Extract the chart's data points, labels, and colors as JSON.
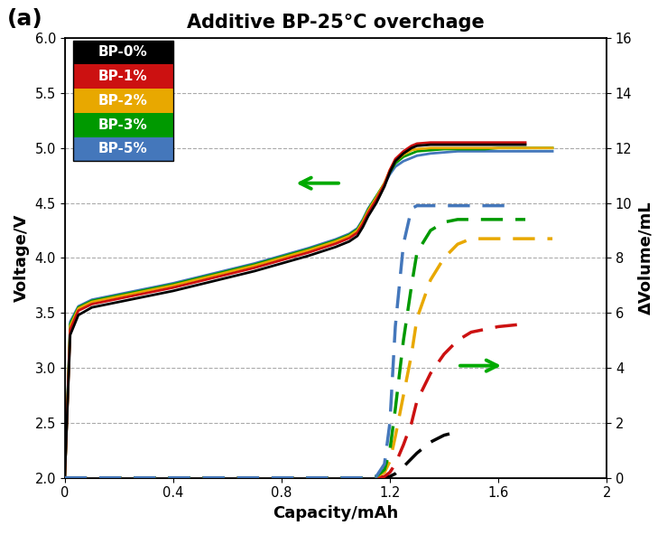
{
  "title": "Additive BP-25°C overchage",
  "panel_label": "(a)",
  "xlabel": "Capacity/mAh",
  "ylabel_left": "Voltage/V",
  "ylabel_right": "ΔVolume/mL",
  "xlim": [
    0,
    2
  ],
  "ylim_left": [
    2,
    6
  ],
  "ylim_right": [
    0,
    16
  ],
  "xticks": [
    0,
    0.4,
    0.8,
    1.2,
    1.6,
    2.0
  ],
  "yticks_left": [
    2,
    2.5,
    3,
    3.5,
    4,
    4.5,
    5,
    5.5,
    6
  ],
  "yticks_right": [
    0,
    2,
    4,
    6,
    8,
    10,
    12,
    14,
    16
  ],
  "legend_labels": [
    "BP-0%",
    "BP-1%",
    "BP-2%",
    "BP-3%",
    "BP-5%"
  ],
  "legend_bg_colors": [
    "#000000",
    "#cc1111",
    "#e8a800",
    "#009900",
    "#4477bb"
  ],
  "colors": {
    "BP-0%": "#000000",
    "BP-1%": "#cc1111",
    "BP-2%": "#e8a800",
    "BP-3%": "#009900",
    "BP-5%": "#4477bb"
  },
  "background_color": "#ffffff",
  "title_fontsize": 15,
  "label_fontsize": 12,
  "voltage_curves": {
    "BP-0%": {
      "x": [
        0.0,
        0.02,
        0.05,
        0.1,
        0.2,
        0.3,
        0.4,
        0.5,
        0.6,
        0.7,
        0.8,
        0.9,
        1.0,
        1.05,
        1.08,
        1.1,
        1.12,
        1.15,
        1.18,
        1.2,
        1.22,
        1.25,
        1.28,
        1.3,
        1.35,
        1.4,
        1.45,
        1.5,
        1.55,
        1.6,
        1.65,
        1.7
      ],
      "y": [
        2.0,
        3.3,
        3.48,
        3.55,
        3.6,
        3.65,
        3.7,
        3.76,
        3.82,
        3.88,
        3.95,
        4.02,
        4.1,
        4.15,
        4.2,
        4.28,
        4.38,
        4.5,
        4.65,
        4.78,
        4.88,
        4.95,
        5.0,
        5.02,
        5.03,
        5.03,
        5.03,
        5.03,
        5.03,
        5.03,
        5.03,
        5.03
      ]
    },
    "BP-1%": {
      "x": [
        0.0,
        0.02,
        0.05,
        0.1,
        0.2,
        0.3,
        0.4,
        0.5,
        0.6,
        0.7,
        0.8,
        0.9,
        1.0,
        1.05,
        1.08,
        1.1,
        1.12,
        1.15,
        1.18,
        1.2,
        1.22,
        1.25,
        1.28,
        1.3,
        1.35,
        1.4,
        1.45,
        1.5,
        1.55,
        1.6,
        1.65,
        1.7
      ],
      "y": [
        2.0,
        3.35,
        3.52,
        3.58,
        3.63,
        3.68,
        3.73,
        3.79,
        3.85,
        3.91,
        3.98,
        4.05,
        4.13,
        4.18,
        4.23,
        4.31,
        4.41,
        4.53,
        4.67,
        4.8,
        4.9,
        4.97,
        5.02,
        5.04,
        5.05,
        5.05,
        5.05,
        5.05,
        5.05,
        5.05,
        5.05,
        5.05
      ]
    },
    "BP-2%": {
      "x": [
        0.0,
        0.02,
        0.05,
        0.1,
        0.2,
        0.3,
        0.4,
        0.5,
        0.6,
        0.7,
        0.8,
        0.9,
        1.0,
        1.05,
        1.08,
        1.1,
        1.12,
        1.15,
        1.18,
        1.2,
        1.22,
        1.25,
        1.28,
        1.3,
        1.35,
        1.4,
        1.45,
        1.5,
        1.55,
        1.6,
        1.65,
        1.7,
        1.75,
        1.8
      ],
      "y": [
        2.0,
        3.38,
        3.54,
        3.6,
        3.65,
        3.7,
        3.75,
        3.81,
        3.87,
        3.93,
        4.0,
        4.07,
        4.15,
        4.2,
        4.25,
        4.33,
        4.43,
        4.55,
        4.68,
        4.8,
        4.88,
        4.94,
        4.98,
        4.99,
        5.0,
        5.0,
        5.0,
        5.0,
        5.0,
        5.0,
        5.0,
        5.0,
        5.0,
        5.0
      ]
    },
    "BP-3%": {
      "x": [
        0.0,
        0.02,
        0.05,
        0.1,
        0.2,
        0.3,
        0.4,
        0.5,
        0.6,
        0.7,
        0.8,
        0.9,
        1.0,
        1.05,
        1.08,
        1.1,
        1.12,
        1.15,
        1.18,
        1.2,
        1.22,
        1.25,
        1.28,
        1.3,
        1.35,
        1.4,
        1.45,
        1.5,
        1.55,
        1.6,
        1.65,
        1.7,
        1.75,
        1.8
      ],
      "y": [
        2.0,
        3.4,
        3.55,
        3.61,
        3.66,
        3.71,
        3.76,
        3.82,
        3.88,
        3.94,
        4.01,
        4.08,
        4.16,
        4.21,
        4.26,
        4.34,
        4.44,
        4.56,
        4.68,
        4.78,
        4.86,
        4.92,
        4.95,
        4.97,
        4.98,
        4.99,
        4.99,
        4.99,
        4.99,
        5.0,
        5.0,
        5.0,
        5.0,
        5.0
      ]
    },
    "BP-5%": {
      "x": [
        0.0,
        0.02,
        0.05,
        0.1,
        0.2,
        0.3,
        0.4,
        0.5,
        0.6,
        0.7,
        0.8,
        0.9,
        1.0,
        1.05,
        1.08,
        1.1,
        1.12,
        1.15,
        1.18,
        1.2,
        1.22,
        1.25,
        1.28,
        1.3,
        1.35,
        1.4,
        1.45,
        1.5,
        1.55,
        1.6,
        1.65,
        1.7,
        1.75,
        1.8
      ],
      "y": [
        2.0,
        3.42,
        3.56,
        3.62,
        3.67,
        3.72,
        3.77,
        3.83,
        3.89,
        3.95,
        4.02,
        4.09,
        4.17,
        4.22,
        4.27,
        4.35,
        4.45,
        4.56,
        4.67,
        4.76,
        4.83,
        4.88,
        4.91,
        4.93,
        4.95,
        4.96,
        4.97,
        4.97,
        4.97,
        4.97,
        4.97,
        4.97,
        4.97,
        4.97
      ]
    }
  },
  "volume_curves": {
    "BP-0%": {
      "x": [
        0.0,
        0.5,
        1.0,
        1.1,
        1.15,
        1.18,
        1.2,
        1.22,
        1.25,
        1.28,
        1.3,
        1.35,
        1.4,
        1.42
      ],
      "y": [
        0.0,
        0.0,
        0.0,
        0.0,
        0.0,
        0.0,
        0.05,
        0.15,
        0.4,
        0.7,
        0.9,
        1.3,
        1.55,
        1.6
      ]
    },
    "BP-1%": {
      "x": [
        0.0,
        0.5,
        1.0,
        1.1,
        1.15,
        1.18,
        1.2,
        1.22,
        1.25,
        1.28,
        1.3,
        1.35,
        1.4,
        1.45,
        1.5,
        1.55,
        1.6,
        1.65,
        1.7
      ],
      "y": [
        0.0,
        0.0,
        0.0,
        0.0,
        0.0,
        0.05,
        0.2,
        0.5,
        1.2,
        2.0,
        2.8,
        3.8,
        4.5,
        5.0,
        5.3,
        5.4,
        5.5,
        5.55,
        5.6
      ]
    },
    "BP-2%": {
      "x": [
        0.0,
        0.5,
        1.0,
        1.1,
        1.15,
        1.18,
        1.2,
        1.22,
        1.25,
        1.28,
        1.3,
        1.35,
        1.4,
        1.45,
        1.5,
        1.55,
        1.6,
        1.65,
        1.7,
        1.75,
        1.8
      ],
      "y": [
        0.0,
        0.0,
        0.0,
        0.0,
        0.05,
        0.2,
        0.6,
        1.5,
        3.0,
        4.5,
        5.8,
        7.2,
        8.0,
        8.5,
        8.7,
        8.7,
        8.7,
        8.7,
        8.7,
        8.7,
        8.7
      ]
    },
    "BP-3%": {
      "x": [
        0.0,
        0.5,
        1.0,
        1.1,
        1.15,
        1.18,
        1.2,
        1.22,
        1.25,
        1.28,
        1.3,
        1.35,
        1.4,
        1.45,
        1.5,
        1.55,
        1.6,
        1.65,
        1.7
      ],
      "y": [
        0.0,
        0.0,
        0.0,
        0.0,
        0.05,
        0.3,
        1.0,
        2.5,
        5.0,
        7.0,
        8.2,
        9.0,
        9.3,
        9.4,
        9.4,
        9.4,
        9.4,
        9.4,
        9.4
      ]
    },
    "BP-5%": {
      "x": [
        0.0,
        0.5,
        1.0,
        1.1,
        1.15,
        1.18,
        1.2,
        1.22,
        1.25,
        1.28,
        1.3,
        1.35,
        1.4,
        1.45,
        1.5,
        1.55,
        1.6,
        1.65
      ],
      "y": [
        0.0,
        0.0,
        0.0,
        0.0,
        0.05,
        0.5,
        2.0,
        5.5,
        8.5,
        9.8,
        9.9,
        9.9,
        9.9,
        9.9,
        9.9,
        9.9,
        9.9,
        9.9
      ]
    }
  }
}
